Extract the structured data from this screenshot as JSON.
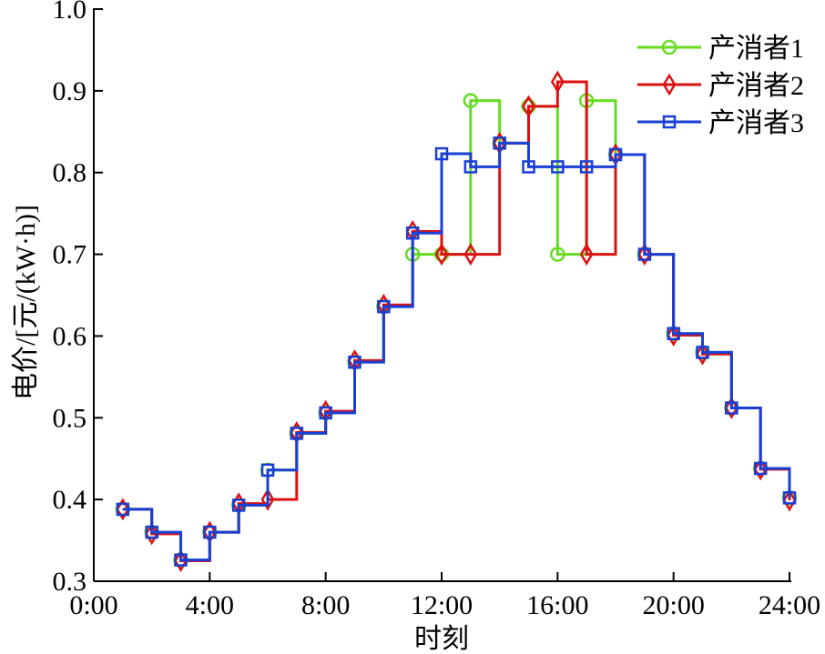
{
  "chart_data": {
    "type": "line",
    "step": "post",
    "xlabel": "时刻",
    "ylabel": "电价/[元/(kW·h)]",
    "xlim": [
      0,
      24
    ],
    "ylim": [
      0.3,
      1.0
    ],
    "x_ticks": [
      0,
      4,
      8,
      12,
      16,
      20,
      24
    ],
    "x_tick_labels": [
      "0:00",
      "4:00",
      "8:00",
      "12:00",
      "16:00",
      "20:00",
      "24:00"
    ],
    "y_ticks": [
      0.3,
      0.4,
      0.5,
      0.6,
      0.7,
      0.8,
      0.9,
      1.0
    ],
    "y_tick_labels": [
      "0.3",
      "0.4",
      "0.5",
      "0.6",
      "0.7",
      "0.8",
      "0.9",
      "1.0"
    ],
    "legend_position": "top-right",
    "grid": false,
    "x": [
      1,
      2,
      3,
      4,
      5,
      6,
      7,
      8,
      9,
      10,
      11,
      12,
      13,
      14,
      15,
      16,
      17,
      18,
      19,
      20,
      21,
      22,
      23,
      24
    ],
    "series": [
      {
        "name": "产消者1",
        "color": "#66dd22",
        "marker": "circle",
        "values": [
          0.388,
          0.36,
          0.326,
          0.36,
          0.393,
          0.436,
          0.481,
          0.506,
          0.568,
          0.636,
          0.7,
          0.7,
          0.888,
          0.836,
          0.881,
          0.7,
          0.888,
          0.822,
          0.7,
          0.603,
          0.58,
          0.512,
          0.438,
          0.402
        ]
      },
      {
        "name": "产消者2",
        "color": "#dd1111",
        "marker": "diamond",
        "values": [
          0.388,
          0.358,
          0.325,
          0.36,
          0.395,
          0.4,
          0.482,
          0.508,
          0.57,
          0.638,
          0.728,
          0.7,
          0.7,
          0.836,
          0.881,
          0.911,
          0.7,
          0.822,
          0.7,
          0.601,
          0.578,
          0.512,
          0.437,
          0.399
        ]
      },
      {
        "name": "产消者3",
        "color": "#1a3fd6",
        "marker": "square",
        "values": [
          0.388,
          0.36,
          0.326,
          0.36,
          0.393,
          0.436,
          0.481,
          0.506,
          0.568,
          0.636,
          0.726,
          0.823,
          0.807,
          0.836,
          0.807,
          0.807,
          0.807,
          0.822,
          0.7,
          0.603,
          0.58,
          0.512,
          0.438,
          0.402
        ]
      }
    ]
  }
}
